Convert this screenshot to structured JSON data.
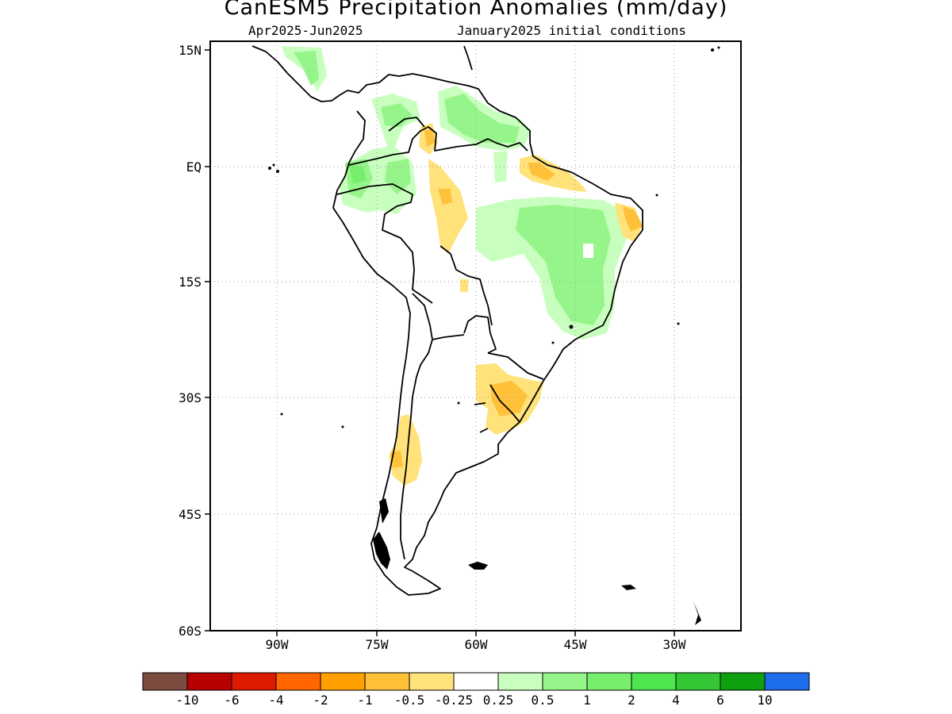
{
  "header": {
    "title": "CanESM5 Precipitation Anomalies (mm/day)",
    "period": "Apr2025-Jun2025",
    "init": "January2025 initial conditions"
  },
  "map": {
    "region": "South America",
    "lat_labels": [
      "15N",
      "EQ",
      "15S",
      "30S",
      "45S",
      "60S"
    ],
    "lon_labels": [
      "90W",
      "75W",
      "60W",
      "45W",
      "30W"
    ],
    "grid": "dotted"
  },
  "colorbar": {
    "labels": [
      "-10",
      "-6",
      "-4",
      "-2",
      "-1",
      "-0.5",
      "-0.25",
      "0.25",
      "0.5",
      "1",
      "2",
      "4",
      "6",
      "10"
    ],
    "colors": [
      "#7b4b40",
      "#b80000",
      "#de1a00",
      "#ff6600",
      "#ff9f00",
      "#ffc13a",
      "#ffe27a",
      "#ffffff",
      "#c8ffbe",
      "#96f58a",
      "#78ee6e",
      "#4ee54e",
      "#34c634",
      "#0ea00e",
      "#1e6eeb"
    ]
  }
}
